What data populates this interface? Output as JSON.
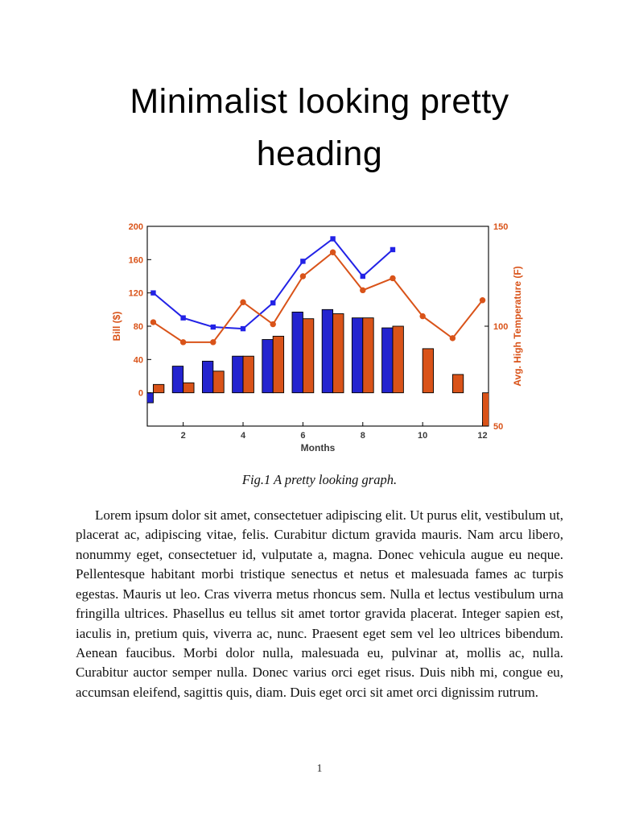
{
  "document": {
    "heading": "Minimalist looking pretty heading",
    "figure": {
      "caption": "Fig.1 A pretty looking graph."
    },
    "body": "Lorem ipsum dolor sit amet, consectetuer adipiscing elit. Ut purus elit, vestibulum ut, placerat ac, adipiscing vitae, felis. Curabitur dictum gravida mauris. Nam arcu libero, nonummy eget, consectetuer id, vulputate a, magna. Donec vehicula augue eu neque. Pellentesque habitant morbi tristique senectus et netus et malesuada fames ac turpis egestas. Mauris ut leo. Cras viverra metus rhoncus sem. Nulla et lectus vestibulum urna fringilla ultrices. Phasellus eu tellus sit amet tortor gravida placerat. Integer sapien est, iaculis in, pretium quis, viverra ac, nunc. Praesent eget sem vel leo ultrices bibendum. Aenean faucibus. Morbi dolor nulla, malesuada eu, pulvinar at, mollis ac, nulla. Curabitur auctor semper nulla. Donec varius orci eget risus. Duis nibh mi, congue eu, accumsan eleifend, sagittis quis, diam. Duis eget orci sit amet orci dignissim rutrum.",
    "page_number": "1"
  },
  "chart_data": {
    "type": "bar",
    "title": "",
    "xlabel": "Months",
    "ylabel_left": "Bill ($)",
    "ylabel_right": "Avg. High Temperature (F)",
    "x": [
      1,
      2,
      3,
      4,
      5,
      6,
      7,
      8,
      9,
      10,
      11,
      12
    ],
    "xlim": [
      0.8,
      12.2
    ],
    "x_ticks": [
      2,
      4,
      6,
      8,
      10,
      12
    ],
    "ylim_left": [
      -40,
      200
    ],
    "y_ticks_left": [
      0,
      40,
      80,
      120,
      160,
      200
    ],
    "ylim_right": [
      50,
      150
    ],
    "y_ticks_right": [
      50,
      100,
      150
    ],
    "grid": false,
    "legend": "none",
    "colors": {
      "blue_bar": "#2424cf",
      "blue_line": "#2222e6",
      "orange": "#d95319",
      "axis_tick_label": "#d95319",
      "x_tick_label": "#3a3a3a",
      "plot_border": "#000000"
    },
    "series": [
      {
        "name": "bill-bars-blue",
        "kind": "bar",
        "axis": "left",
        "color": "#2424cf",
        "values": [
          -12,
          32,
          38,
          44,
          64,
          97,
          100,
          90,
          78,
          null,
          null,
          null
        ]
      },
      {
        "name": "bill-bars-orange",
        "kind": "bar",
        "axis": "left",
        "color": "#d95319",
        "values": [
          10,
          12,
          26,
          44,
          68,
          89,
          95,
          90,
          80,
          53,
          22,
          -40
        ]
      },
      {
        "name": "bill-line-blue",
        "kind": "line",
        "marker": "square",
        "axis": "left",
        "color": "#2222e6",
        "values": [
          120,
          90,
          79,
          77,
          108,
          158,
          185,
          140,
          172,
          null,
          null,
          null
        ]
      },
      {
        "name": "temperature-line-orange",
        "kind": "line",
        "marker": "circle",
        "axis": "right",
        "color": "#d95319",
        "values": [
          102,
          92,
          92,
          112,
          101,
          125,
          137,
          118,
          124,
          105,
          94,
          113
        ]
      }
    ]
  }
}
